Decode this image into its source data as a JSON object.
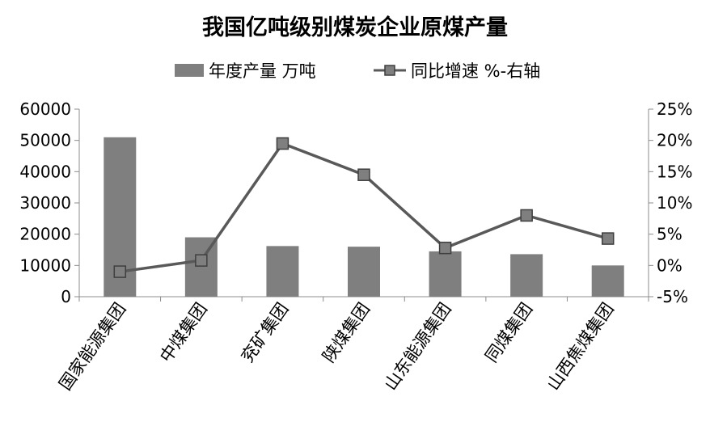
{
  "chart_data": {
    "type": "bar+line",
    "title": "我国亿吨级别煤炭企业原煤产量",
    "categories": [
      "国家能源集团",
      "中煤集团",
      "兖矿集团",
      "陕煤集团",
      "山东能源集团",
      "同煤集团",
      "山西焦煤集团"
    ],
    "series": [
      {
        "name": "年度产量 万吨",
        "type": "bar",
        "axis": "left",
        "color": "#7f7f7f",
        "values": [
          51000,
          19000,
          16200,
          16000,
          14500,
          13600,
          10000
        ]
      },
      {
        "name": "同比增速 %-右轴",
        "type": "line",
        "axis": "right",
        "color": "#595959",
        "values": [
          -1.0,
          0.8,
          19.5,
          14.5,
          2.8,
          8.0,
          4.3
        ]
      }
    ],
    "left_axis": {
      "ylim": [
        0,
        60000
      ],
      "ticks": [
        "0",
        "10000",
        "20000",
        "30000",
        "40000",
        "50000",
        "60000"
      ]
    },
    "right_axis": {
      "ylim": [
        -5,
        25
      ],
      "ticks": [
        "-5%",
        "0%",
        "5%",
        "10%",
        "15%",
        "20%",
        "25%"
      ]
    },
    "grid": false,
    "legend": "top-center"
  }
}
